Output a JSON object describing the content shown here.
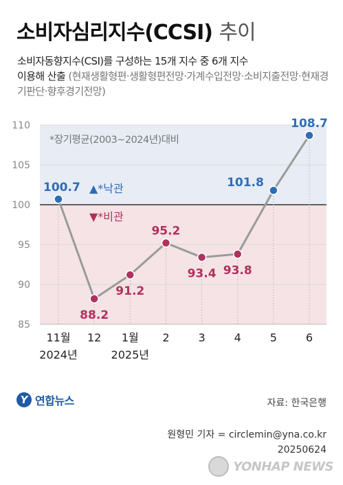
{
  "header": {
    "title": "소비자심리지수(CCSI)",
    "title_suffix": "추이",
    "subtitle_line1": "소비자동향지수(CSI)를 구성하는 15개 지수 중 6개 지수",
    "subtitle_line2": "이용해 산출",
    "subtitle_note": "(현재생활형편·생활형편전망·가계수입전망·소비지출전망·현재경기판단·향후경기전망)"
  },
  "chart_data": {
    "type": "line",
    "categories": [
      "11월 2024년",
      "12",
      "1월 2025년",
      "2",
      "3",
      "4",
      "5",
      "6"
    ],
    "x_tick_lines": [
      [
        "11월",
        "2024년"
      ],
      [
        "12"
      ],
      [
        "1월",
        "2025년"
      ],
      [
        "2"
      ],
      [
        "3"
      ],
      [
        "4"
      ],
      [
        "5"
      ],
      [
        "6"
      ]
    ],
    "values": [
      100.7,
      88.2,
      91.2,
      95.2,
      93.4,
      93.8,
      101.8,
      108.7
    ],
    "value_labels": [
      "100.7",
      "88.2",
      "91.2",
      "95.2",
      "93.4",
      "93.8",
      "101.8",
      "108.7"
    ],
    "ylim": [
      85,
      110
    ],
    "yticks": [
      85,
      90,
      95,
      100,
      105,
      110
    ],
    "baseline": 100,
    "baseline_note": "*장기평균(2003~2024년)대비",
    "legend_optimistic": "▲*낙관",
    "legend_pessimistic": "▼*비관",
    "colors": {
      "optimistic": "#2e6db4",
      "pessimistic": "#b0315e",
      "line": "#9a9a9a",
      "upper_band": "#e7ecf5",
      "lower_band": "#f5e3e6"
    }
  },
  "footer": {
    "logo_text": "연합뉴스",
    "source": "자료: 한국은행",
    "reporter": "원형민 기자 = circlemin@yna.co.kr",
    "date_code": "20250624",
    "watermark": "YONHAP NEWS"
  }
}
